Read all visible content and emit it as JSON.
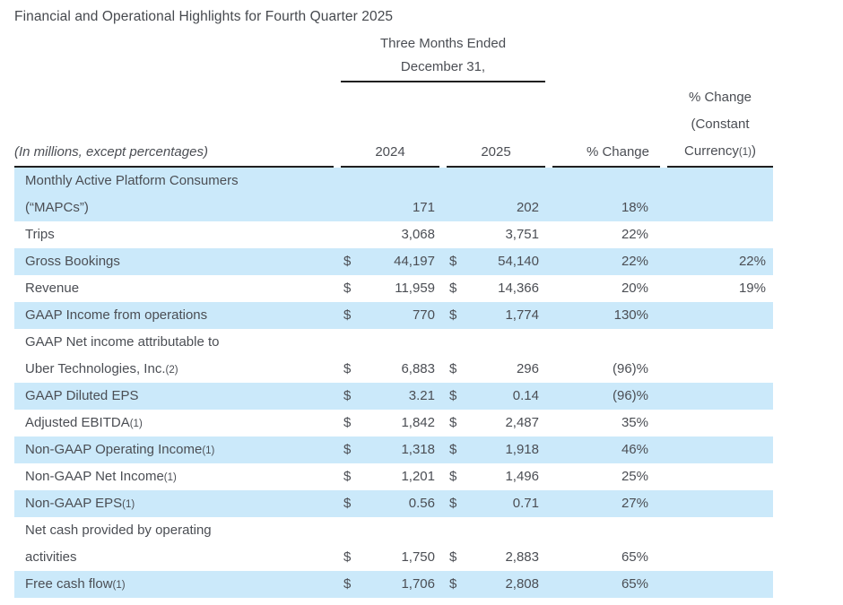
{
  "title": "Financial and Operational Highlights for Fourth Quarter 2025",
  "colors": {
    "row_highlight": "#cbe9fa",
    "text": "#4b4e54",
    "rule": "#1f1f1f"
  },
  "table": {
    "period_line1": "Three Months Ended",
    "period_line2": "December 31,",
    "col_note": "(In millions, except percentages)",
    "col_2024": "2024",
    "col_2025": "2025",
    "col_change": "% Change",
    "col_change_cc": {
      "l1": "% Change",
      "l2": "(Constant",
      "l3_pre": "Currency",
      "l3_marker": "(1)",
      "l3_post": ")"
    },
    "rows": [
      {
        "l1": "Monthly Active Platform Consumers",
        "m1": "",
        "l2": "(“MAPCs”)",
        "m2": "",
        "d": "",
        "v24": "171",
        "v25": "202",
        "chg": "18%",
        "cc": ""
      },
      {
        "l1": "Trips",
        "m1": "",
        "d": "",
        "v24": "3,068",
        "v25": "3,751",
        "chg": "22%",
        "cc": ""
      },
      {
        "l1": "Gross Bookings",
        "m1": "",
        "d": "$",
        "v24": "44,197",
        "v25": "54,140",
        "chg": "22%",
        "cc": "22%"
      },
      {
        "l1": "Revenue",
        "m1": "",
        "d": "$",
        "v24": "11,959",
        "v25": "14,366",
        "chg": "20%",
        "cc": "19%"
      },
      {
        "l1": "GAAP Income from operations",
        "m1": "",
        "d": "$",
        "v24": "770",
        "v25": "1,774",
        "chg": "130%",
        "cc": ""
      },
      {
        "l1": "GAAP Net income attributable to",
        "m1": "",
        "l2": "Uber Technologies, Inc.",
        "m2": "(2)",
        "d": "$",
        "v24": "6,883",
        "v25": "296",
        "chg": "(96)%",
        "cc": ""
      },
      {
        "l1": "GAAP Diluted EPS",
        "m1": "",
        "d": "$",
        "v24": "3.21",
        "v25": "0.14",
        "chg": "(96)%",
        "cc": ""
      },
      {
        "l1": "Adjusted EBITDA",
        "m1": "(1)",
        "d": "$",
        "v24": "1,842",
        "v25": "2,487",
        "chg": "35%",
        "cc": ""
      },
      {
        "l1": "Non-GAAP Operating Income",
        "m1": "(1)",
        "d": "$",
        "v24": "1,318",
        "v25": "1,918",
        "chg": "46%",
        "cc": ""
      },
      {
        "l1": "Non-GAAP Net Income",
        "m1": "(1)",
        "d": "$",
        "v24": "1,201",
        "v25": "1,496",
        "chg": "25%",
        "cc": ""
      },
      {
        "l1": "Non-GAAP EPS",
        "m1": "(1)",
        "d": "$",
        "v24": "0.56",
        "v25": "0.71",
        "chg": "27%",
        "cc": ""
      },
      {
        "l1": "Net cash provided by operating",
        "m1": "",
        "l2": "activities",
        "m2": "",
        "d": "$",
        "v24": "1,750",
        "v25": "2,883",
        "chg": "65%",
        "cc": ""
      },
      {
        "l1": "Free cash flow",
        "m1": "(1)",
        "d": "$",
        "v24": "1,706",
        "v25": "2,808",
        "chg": "65%",
        "cc": ""
      }
    ]
  }
}
